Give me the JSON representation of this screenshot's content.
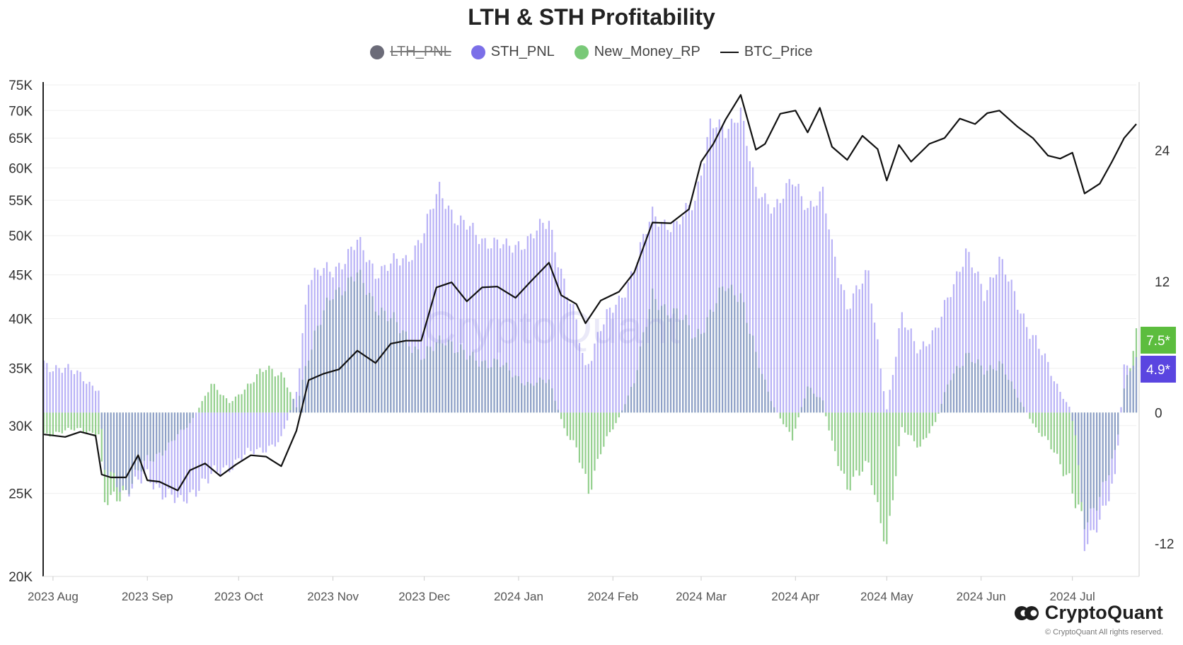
{
  "chart_data": {
    "type": "bar",
    "title": "LTH & STH Profitability",
    "legend": [
      {
        "name": "LTH_PNL",
        "color": "#6b6b78",
        "hidden": true,
        "marker": "dot"
      },
      {
        "name": "STH_PNL",
        "color": "#7b6fe8",
        "marker": "dot"
      },
      {
        "name": "New_Money_RP",
        "color": "#79c978",
        "marker": "dot"
      },
      {
        "name": "BTC_Price",
        "color": "#111111",
        "marker": "line"
      }
    ],
    "legend_position": "top-center",
    "x_ticks": [
      "2023 Aug",
      "2023 Sep",
      "2023 Oct",
      "2023 Nov",
      "2023 Dec",
      "2024 Jan",
      "2024 Feb",
      "2024 Mar",
      "2024 Apr",
      "2024 May",
      "2024 Jun",
      "2024 Jul"
    ],
    "x_range": [
      "2023-07-29",
      "2024-07-22"
    ],
    "left_axis": {
      "label": "BTC_Price",
      "scale": "log",
      "range": [
        20000,
        75000
      ],
      "ticks": [
        "20K",
        "25K",
        "30K",
        "35K",
        "40K",
        "45K",
        "50K",
        "55K",
        "60K",
        "65K",
        "70K",
        "75K"
      ]
    },
    "right_axis": {
      "range": [
        -15,
        30
      ],
      "ticks": [
        "24",
        "12",
        "0",
        "-12"
      ]
    },
    "grid": true,
    "end_labels": [
      {
        "text": "7.5*",
        "color": "#5cbd3e",
        "value": 7.5
      },
      {
        "text": "4.9*",
        "color": "#5a45e0",
        "value": 4.9
      }
    ],
    "series": [
      {
        "name": "BTC_Price",
        "axis": "left",
        "points": [
          [
            "2023-07-29",
            29300
          ],
          [
            "2023-08-05",
            29100
          ],
          [
            "2023-08-10",
            29500
          ],
          [
            "2023-08-15",
            29200
          ],
          [
            "2023-08-17",
            26300
          ],
          [
            "2023-08-20",
            26100
          ],
          [
            "2023-08-25",
            26100
          ],
          [
            "2023-08-29",
            27700
          ],
          [
            "2023-09-01",
            25900
          ],
          [
            "2023-09-05",
            25800
          ],
          [
            "2023-09-11",
            25200
          ],
          [
            "2023-09-15",
            26600
          ],
          [
            "2023-09-20",
            27100
          ],
          [
            "2023-09-25",
            26200
          ],
          [
            "2023-09-30",
            27000
          ],
          [
            "2023-10-05",
            27700
          ],
          [
            "2023-10-10",
            27600
          ],
          [
            "2023-10-15",
            26900
          ],
          [
            "2023-10-20",
            29600
          ],
          [
            "2023-10-24",
            33900
          ],
          [
            "2023-10-29",
            34500
          ],
          [
            "2023-11-03",
            34900
          ],
          [
            "2023-11-09",
            36700
          ],
          [
            "2023-11-15",
            35500
          ],
          [
            "2023-11-20",
            37400
          ],
          [
            "2023-11-25",
            37700
          ],
          [
            "2023-11-30",
            37700
          ],
          [
            "2023-12-05",
            43500
          ],
          [
            "2023-12-10",
            44100
          ],
          [
            "2023-12-15",
            41900
          ],
          [
            "2023-12-20",
            43500
          ],
          [
            "2023-12-25",
            43600
          ],
          [
            "2023-12-31",
            42300
          ],
          [
            "2024-01-05",
            44200
          ],
          [
            "2024-01-11",
            46500
          ],
          [
            "2024-01-15",
            42600
          ],
          [
            "2024-01-20",
            41600
          ],
          [
            "2024-01-23",
            39500
          ],
          [
            "2024-01-28",
            42000
          ],
          [
            "2024-02-03",
            43000
          ],
          [
            "2024-02-08",
            45300
          ],
          [
            "2024-02-14",
            51800
          ],
          [
            "2024-02-20",
            51700
          ],
          [
            "2024-02-26",
            53700
          ],
          [
            "2024-03-01",
            61000
          ],
          [
            "2024-03-05",
            64000
          ],
          [
            "2024-03-09",
            68300
          ],
          [
            "2024-03-14",
            73000
          ],
          [
            "2024-03-19",
            63000
          ],
          [
            "2024-03-22",
            64000
          ],
          [
            "2024-03-27",
            69400
          ],
          [
            "2024-04-01",
            70000
          ],
          [
            "2024-04-05",
            66000
          ],
          [
            "2024-04-09",
            70500
          ],
          [
            "2024-04-13",
            63500
          ],
          [
            "2024-04-18",
            61300
          ],
          [
            "2024-04-23",
            65400
          ],
          [
            "2024-04-28",
            63100
          ],
          [
            "2024-05-01",
            58000
          ],
          [
            "2024-05-05",
            63800
          ],
          [
            "2024-05-09",
            61000
          ],
          [
            "2024-05-15",
            64000
          ],
          [
            "2024-05-20",
            65000
          ],
          [
            "2024-05-25",
            68500
          ],
          [
            "2024-05-30",
            67500
          ],
          [
            "2024-06-03",
            69500
          ],
          [
            "2024-06-07",
            70000
          ],
          [
            "2024-06-13",
            67000
          ],
          [
            "2024-06-18",
            65000
          ],
          [
            "2024-06-23",
            62000
          ],
          [
            "2024-06-27",
            61500
          ],
          [
            "2024-07-01",
            62500
          ],
          [
            "2024-07-05",
            56000
          ],
          [
            "2024-07-10",
            57500
          ],
          [
            "2024-07-14",
            61000
          ],
          [
            "2024-07-18",
            65000
          ],
          [
            "2024-07-22",
            67500
          ]
        ]
      },
      {
        "name": "STH_PNL",
        "axis": "right",
        "points": [
          [
            "2023-07-29",
            4.5
          ],
          [
            "2023-08-10",
            3.5
          ],
          [
            "2023-08-16",
            2.0
          ],
          [
            "2023-08-18",
            -5.5
          ],
          [
            "2023-08-25",
            -7.0
          ],
          [
            "2023-09-01",
            -6.0
          ],
          [
            "2023-09-08",
            -7.5
          ],
          [
            "2023-09-12",
            -8.5
          ],
          [
            "2023-09-18",
            -6.5
          ],
          [
            "2023-09-25",
            -5.5
          ],
          [
            "2023-10-02",
            -4.0
          ],
          [
            "2023-10-08",
            -3.5
          ],
          [
            "2023-10-15",
            -2.5
          ],
          [
            "2023-10-20",
            2.0
          ],
          [
            "2023-10-24",
            12.5
          ],
          [
            "2023-11-01",
            13.0
          ],
          [
            "2023-11-09",
            15.5
          ],
          [
            "2023-11-15",
            13.0
          ],
          [
            "2023-11-25",
            14.0
          ],
          [
            "2023-12-01",
            16.5
          ],
          [
            "2023-12-06",
            20.5
          ],
          [
            "2023-12-12",
            17.5
          ],
          [
            "2023-12-20",
            16.0
          ],
          [
            "2023-12-28",
            15.0
          ],
          [
            "2024-01-05",
            16.0
          ],
          [
            "2024-01-11",
            17.5
          ],
          [
            "2024-01-16",
            12.0
          ],
          [
            "2024-01-20",
            8.0
          ],
          [
            "2024-01-23",
            4.0
          ],
          [
            "2024-01-28",
            8.0
          ],
          [
            "2024-02-03",
            10.0
          ],
          [
            "2024-02-08",
            13.5
          ],
          [
            "2024-02-14",
            18.0
          ],
          [
            "2024-02-22",
            17.0
          ],
          [
            "2024-02-28",
            19.5
          ],
          [
            "2024-03-04",
            26.5
          ],
          [
            "2024-03-09",
            25.5
          ],
          [
            "2024-03-14",
            28.0
          ],
          [
            "2024-03-19",
            20.0
          ],
          [
            "2024-03-25",
            19.0
          ],
          [
            "2024-03-31",
            21.0
          ],
          [
            "2024-04-05",
            19.0
          ],
          [
            "2024-04-10",
            20.0
          ],
          [
            "2024-04-13",
            15.0
          ],
          [
            "2024-04-18",
            10.0
          ],
          [
            "2024-04-25",
            12.5
          ],
          [
            "2024-05-01",
            0.3
          ],
          [
            "2024-05-06",
            8.5
          ],
          [
            "2024-05-12",
            6.0
          ],
          [
            "2024-05-17",
            7.0
          ],
          [
            "2024-05-22",
            11.5
          ],
          [
            "2024-05-27",
            14.5
          ],
          [
            "2024-06-02",
            11.0
          ],
          [
            "2024-06-07",
            14.0
          ],
          [
            "2024-06-13",
            10.0
          ],
          [
            "2024-06-19",
            6.5
          ],
          [
            "2024-06-25",
            3.0
          ],
          [
            "2024-06-30",
            0.5
          ],
          [
            "2024-07-02",
            -2.0
          ],
          [
            "2024-07-05",
            -12.5
          ],
          [
            "2024-07-09",
            -10.0
          ],
          [
            "2024-07-15",
            -6.5
          ],
          [
            "2024-07-18",
            4.0
          ],
          [
            "2024-07-22",
            4.9
          ]
        ]
      },
      {
        "name": "New_Money_RP",
        "axis": "right",
        "points": [
          [
            "2023-07-29",
            -2.0
          ],
          [
            "2023-08-10",
            -1.5
          ],
          [
            "2023-08-16",
            -2.0
          ],
          [
            "2023-08-18",
            -8.5
          ],
          [
            "2023-08-25",
            -7.0
          ],
          [
            "2023-09-01",
            -4.5
          ],
          [
            "2023-09-08",
            -3.0
          ],
          [
            "2023-09-15",
            -1.0
          ],
          [
            "2023-09-22",
            2.5
          ],
          [
            "2023-09-28",
            1.0
          ],
          [
            "2023-10-05",
            2.5
          ],
          [
            "2023-10-10",
            4.5
          ],
          [
            "2023-10-16",
            3.0
          ],
          [
            "2023-10-20",
            0.5
          ],
          [
            "2023-10-24",
            5.5
          ],
          [
            "2023-11-01",
            11.0
          ],
          [
            "2023-11-09",
            12.5
          ],
          [
            "2023-11-15",
            10.0
          ],
          [
            "2023-11-25",
            7.0
          ],
          [
            "2023-12-01",
            5.0
          ],
          [
            "2023-12-08",
            7.0
          ],
          [
            "2023-12-15",
            5.0
          ],
          [
            "2023-12-25",
            4.5
          ],
          [
            "2024-01-05",
            2.5
          ],
          [
            "2024-01-11",
            3.0
          ],
          [
            "2024-01-16",
            -1.5
          ],
          [
            "2024-01-20",
            -3.5
          ],
          [
            "2024-01-24",
            -7.0
          ],
          [
            "2024-01-28",
            -3.5
          ],
          [
            "2024-02-03",
            -0.5
          ],
          [
            "2024-02-08",
            3.0
          ],
          [
            "2024-02-14",
            10.5
          ],
          [
            "2024-02-22",
            9.0
          ],
          [
            "2024-02-28",
            7.0
          ],
          [
            "2024-03-04",
            9.0
          ],
          [
            "2024-03-09",
            11.5
          ],
          [
            "2024-03-14",
            11.0
          ],
          [
            "2024-03-19",
            5.0
          ],
          [
            "2024-03-25",
            0.5
          ],
          [
            "2024-03-31",
            -2.5
          ],
          [
            "2024-04-05",
            2.5
          ],
          [
            "2024-04-10",
            1.0
          ],
          [
            "2024-04-13",
            -3.0
          ],
          [
            "2024-04-18",
            -6.5
          ],
          [
            "2024-04-25",
            -5.0
          ],
          [
            "2024-05-01",
            -12.0
          ],
          [
            "2024-05-06",
            -1.5
          ],
          [
            "2024-05-12",
            -3.0
          ],
          [
            "2024-05-17",
            -1.0
          ],
          [
            "2024-05-22",
            3.5
          ],
          [
            "2024-05-27",
            5.0
          ],
          [
            "2024-06-02",
            4.0
          ],
          [
            "2024-06-07",
            4.5
          ],
          [
            "2024-06-13",
            1.5
          ],
          [
            "2024-06-19",
            -1.5
          ],
          [
            "2024-06-25",
            -3.5
          ],
          [
            "2024-06-30",
            -6.0
          ],
          [
            "2024-07-02",
            -8.5
          ],
          [
            "2024-07-05",
            -10.5
          ],
          [
            "2024-07-09",
            -8.0
          ],
          [
            "2024-07-15",
            -4.0
          ],
          [
            "2024-07-18",
            2.0
          ],
          [
            "2024-07-22",
            7.5
          ]
        ]
      }
    ]
  },
  "watermark": "CryptoQuant",
  "brand": {
    "name": "CryptoQuant",
    "copyright": "© CryptoQuant All rights reserved."
  }
}
